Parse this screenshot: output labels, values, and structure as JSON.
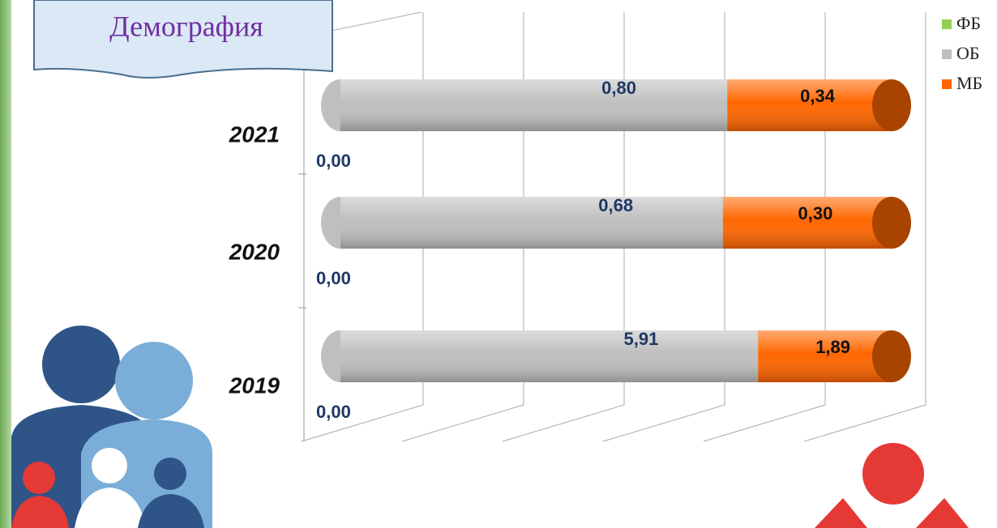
{
  "chart_data": {
    "type": "bar",
    "title": "Демография",
    "categories": [
      "2021",
      "2020",
      "2019"
    ],
    "series": [
      {
        "name": "ФБ",
        "color": "#92d050",
        "values": [
          0,
          0,
          0
        ],
        "value_labels": [
          "0,00",
          "0,00",
          "0,00"
        ]
      },
      {
        "name": "ОБ",
        "color": "#bfbfbf",
        "values": [
          0.8,
          0.68,
          5.91
        ],
        "value_labels": [
          "0,80",
          "0,68",
          "5,91"
        ]
      },
      {
        "name": "МБ",
        "color": "#ff6600",
        "values": [
          0.34,
          0.3,
          1.89
        ],
        "value_labels": [
          "0,34",
          "0,30",
          "1,89"
        ]
      }
    ],
    "stacking": "percent",
    "legend": "top-right"
  }
}
